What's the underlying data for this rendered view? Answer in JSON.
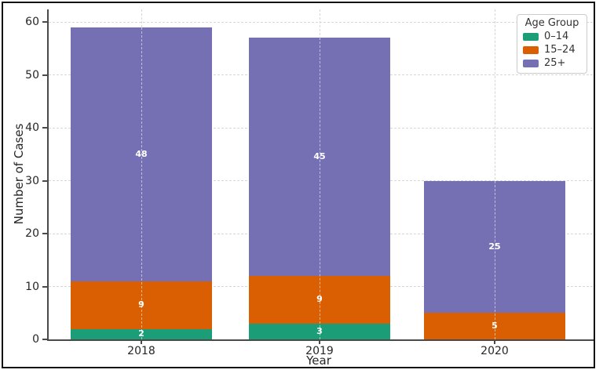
{
  "figure": {
    "background_color": "#ffffff",
    "border_color": "#111111"
  },
  "chart_data": {
    "type": "bar",
    "stacked": true,
    "title": "",
    "xlabel": "Year",
    "ylabel": "Number of Cases",
    "categories": [
      "2018",
      "2019",
      "2020"
    ],
    "series": [
      {
        "name": "0–14",
        "color": "#1b9e77",
        "values": [
          2,
          3,
          0
        ]
      },
      {
        "name": "15–24",
        "color": "#d95f02",
        "values": [
          9,
          9,
          5
        ]
      },
      {
        "name": "25+",
        "color": "#7570b3",
        "values": [
          48,
          45,
          25
        ]
      }
    ],
    "totals": [
      59,
      57,
      30
    ],
    "yticks": [
      0,
      10,
      20,
      30,
      40,
      50,
      60
    ],
    "ylim": [
      0,
      62
    ],
    "bar_label_color": "#ffffff",
    "grid": {
      "horizontal": true,
      "vertical": true,
      "style": "dashed",
      "color": "#d6d6d6"
    },
    "legend": {
      "title": "Age Group",
      "position": "upper right"
    }
  }
}
